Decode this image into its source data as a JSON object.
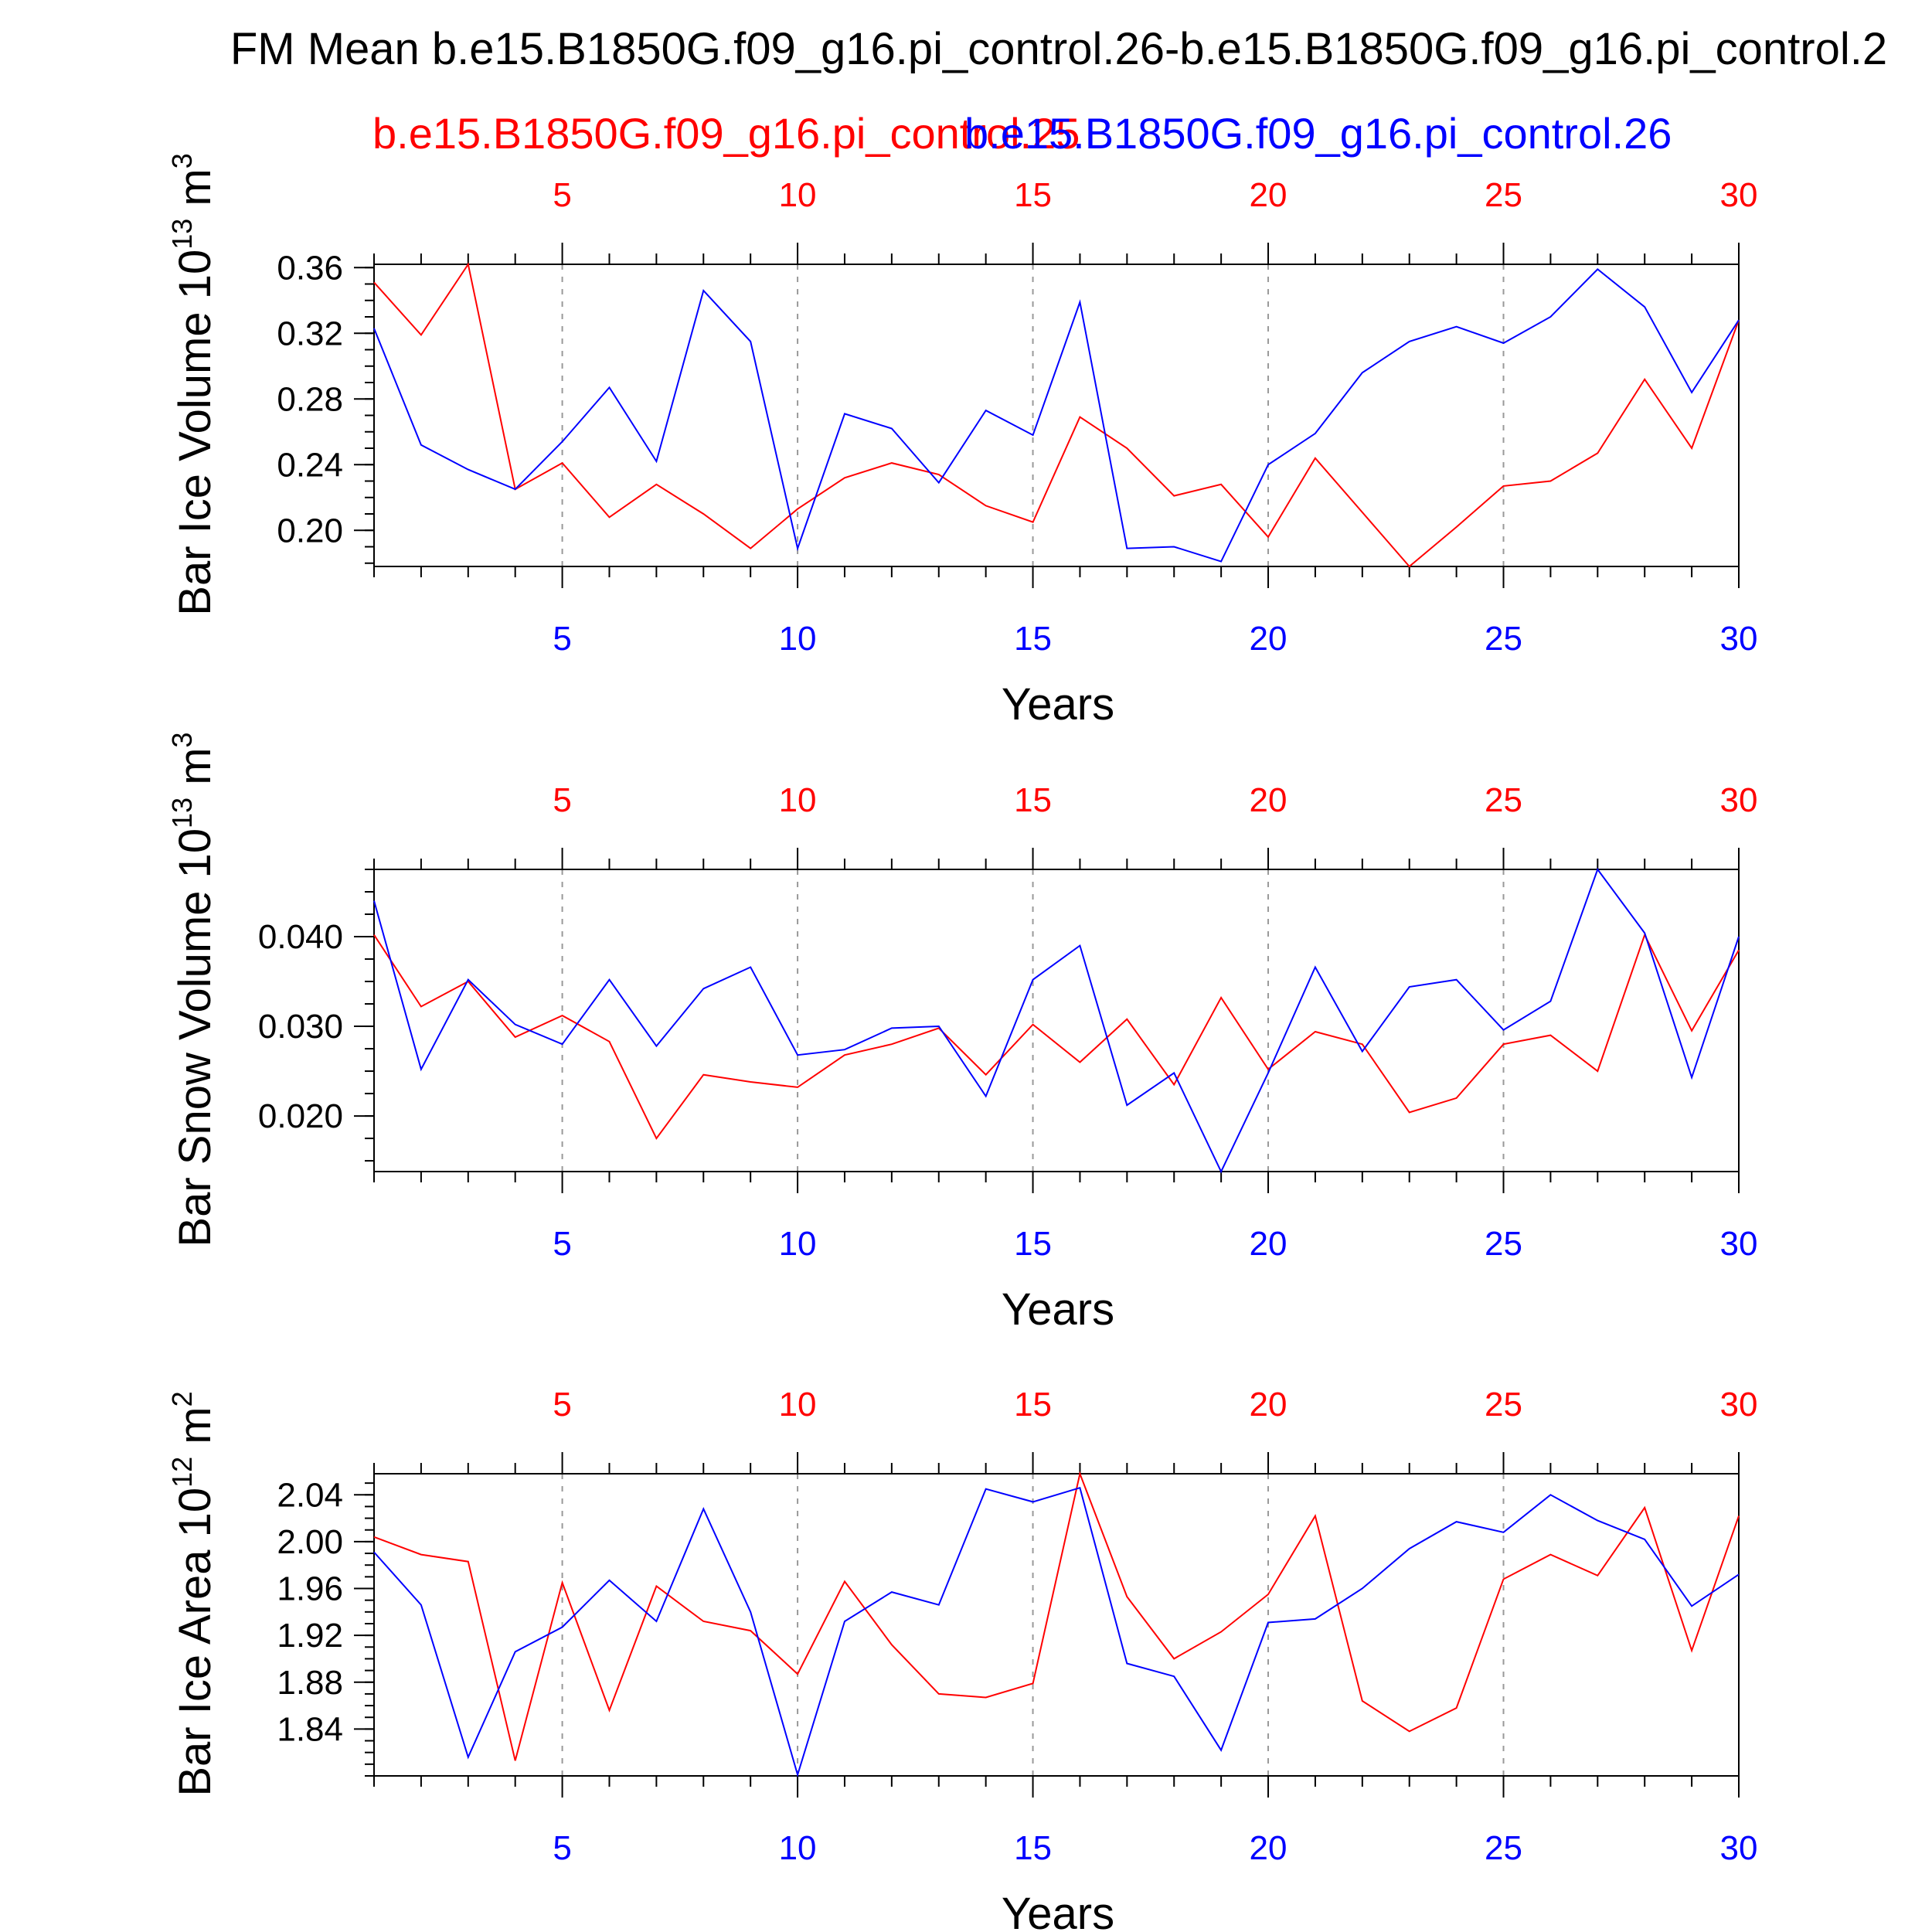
{
  "title": "FM Mean b.e15.B1850G.f09_g16.pi_control.26-b.e15.B1850G.f09_g16.pi_control.2",
  "legend": {
    "red": "b.e15.B1850G.f09_g16.pi_control.25",
    "blue": "b.e15.B1850G.f09_g16.pi_control.26"
  },
  "colors": {
    "red": "#ff0000",
    "blue": "#0000ff",
    "axis": "#000000",
    "grid": "#999999"
  },
  "chart_data": [
    {
      "type": "line",
      "ylabel": "Bar Ice Volume 10",
      "ylabel_exp": "13",
      "ylabel_unit": " m",
      "ylabel_unit_exp": "3",
      "xlabel": "Years",
      "xlim": [
        1,
        30
      ],
      "ylim": [
        0.178,
        0.362
      ],
      "yticks": [
        "0.20",
        "0.24",
        "0.28",
        "0.32",
        "0.36"
      ],
      "xticks": [
        "5",
        "10",
        "15",
        "20",
        "25",
        "30"
      ],
      "grid_x": true,
      "x": [
        1,
        2,
        3,
        4,
        5,
        6,
        7,
        8,
        9,
        10,
        11,
        12,
        13,
        14,
        15,
        16,
        17,
        18,
        19,
        20,
        21,
        22,
        23,
        24,
        25,
        26,
        27,
        28,
        29,
        30
      ],
      "series": [
        {
          "color": "red",
          "values": [
            0.351,
            0.319,
            0.362,
            0.225,
            0.241,
            0.208,
            0.228,
            0.21,
            0.189,
            0.213,
            0.232,
            0.241,
            0.234,
            0.215,
            0.205,
            0.269,
            0.25,
            0.221,
            0.228,
            0.196,
            0.244,
            0.211,
            0.178,
            0.202,
            0.227,
            0.23,
            0.247,
            0.292,
            0.25,
            0.328
          ]
        },
        {
          "color": "blue",
          "values": [
            0.323,
            0.252,
            0.237,
            0.225,
            0.254,
            0.287,
            0.242,
            0.346,
            0.315,
            0.189,
            0.271,
            0.262,
            0.229,
            0.273,
            0.258,
            0.339,
            0.189,
            0.19,
            0.181,
            0.24,
            0.259,
            0.296,
            0.315,
            0.324,
            0.314,
            0.33,
            0.359,
            0.336,
            0.284,
            0.328
          ]
        }
      ]
    },
    {
      "type": "line",
      "ylabel": "Bar Snow Volume 10",
      "ylabel_exp": "13",
      "ylabel_unit": " m",
      "ylabel_unit_exp": "3",
      "xlabel": "Years",
      "xlim": [
        1,
        30
      ],
      "ylim": [
        0.0138,
        0.0475
      ],
      "yticks": [
        "0.020",
        "0.030",
        "0.040"
      ],
      "xticks": [
        "5",
        "10",
        "15",
        "20",
        "25",
        "30"
      ],
      "grid_x": true,
      "x": [
        1,
        2,
        3,
        4,
        5,
        6,
        7,
        8,
        9,
        10,
        11,
        12,
        13,
        14,
        15,
        16,
        17,
        18,
        19,
        20,
        21,
        22,
        23,
        24,
        25,
        26,
        27,
        28,
        29,
        30
      ],
      "series": [
        {
          "color": "red",
          "values": [
            0.0402,
            0.0322,
            0.035,
            0.0288,
            0.0312,
            0.0283,
            0.0175,
            0.0246,
            0.0238,
            0.0232,
            0.0268,
            0.028,
            0.0298,
            0.0246,
            0.0302,
            0.026,
            0.0308,
            0.0235,
            0.0332,
            0.0252,
            0.0294,
            0.028,
            0.0204,
            0.022,
            0.028,
            0.029,
            0.025,
            0.0402,
            0.0295,
            0.0385
          ]
        },
        {
          "color": "blue",
          "values": [
            0.044,
            0.0252,
            0.0352,
            0.0302,
            0.028,
            0.0352,
            0.0278,
            0.0342,
            0.0366,
            0.0268,
            0.0274,
            0.0298,
            0.03,
            0.0222,
            0.0352,
            0.039,
            0.0212,
            0.0248,
            0.0138,
            0.0248,
            0.0366,
            0.0272,
            0.0344,
            0.0352,
            0.0296,
            0.0328,
            0.0475,
            0.0404,
            0.0243,
            0.04
          ]
        }
      ]
    },
    {
      "type": "line",
      "ylabel": "Bar Ice Area 10",
      "ylabel_exp": "12",
      "ylabel_unit": " m",
      "ylabel_unit_exp": "2",
      "xlabel": "Years",
      "xlim": [
        1,
        30
      ],
      "ylim": [
        1.8,
        2.058
      ],
      "yticks": [
        "1.84",
        "1.88",
        "1.92",
        "1.96",
        "2.00",
        "2.04"
      ],
      "xticks": [
        "5",
        "10",
        "15",
        "20",
        "25",
        "30"
      ],
      "grid_x": true,
      "x": [
        1,
        2,
        3,
        4,
        5,
        6,
        7,
        8,
        9,
        10,
        11,
        12,
        13,
        14,
        15,
        16,
        17,
        18,
        19,
        20,
        21,
        22,
        23,
        24,
        25,
        26,
        27,
        28,
        29,
        30
      ],
      "series": [
        {
          "color": "red",
          "values": [
            2.004,
            1.989,
            1.983,
            1.813,
            1.965,
            1.856,
            1.962,
            1.932,
            1.924,
            1.887,
            1.966,
            1.912,
            1.87,
            1.867,
            1.879,
            2.058,
            1.953,
            1.9,
            1.923,
            1.955,
            2.022,
            1.864,
            1.838,
            1.858,
            1.968,
            1.989,
            1.971,
            2.029,
            1.907,
            2.022
          ]
        },
        {
          "color": "blue",
          "values": [
            1.991,
            1.946,
            1.816,
            1.906,
            1.927,
            1.967,
            1.932,
            2.028,
            1.94,
            1.801,
            1.932,
            1.957,
            1.946,
            2.045,
            2.034,
            2.046,
            1.896,
            1.885,
            1.822,
            1.931,
            1.934,
            1.96,
            1.994,
            2.017,
            2.008,
            2.04,
            2.018,
            2.002,
            1.945,
            1.972
          ]
        }
      ]
    }
  ]
}
